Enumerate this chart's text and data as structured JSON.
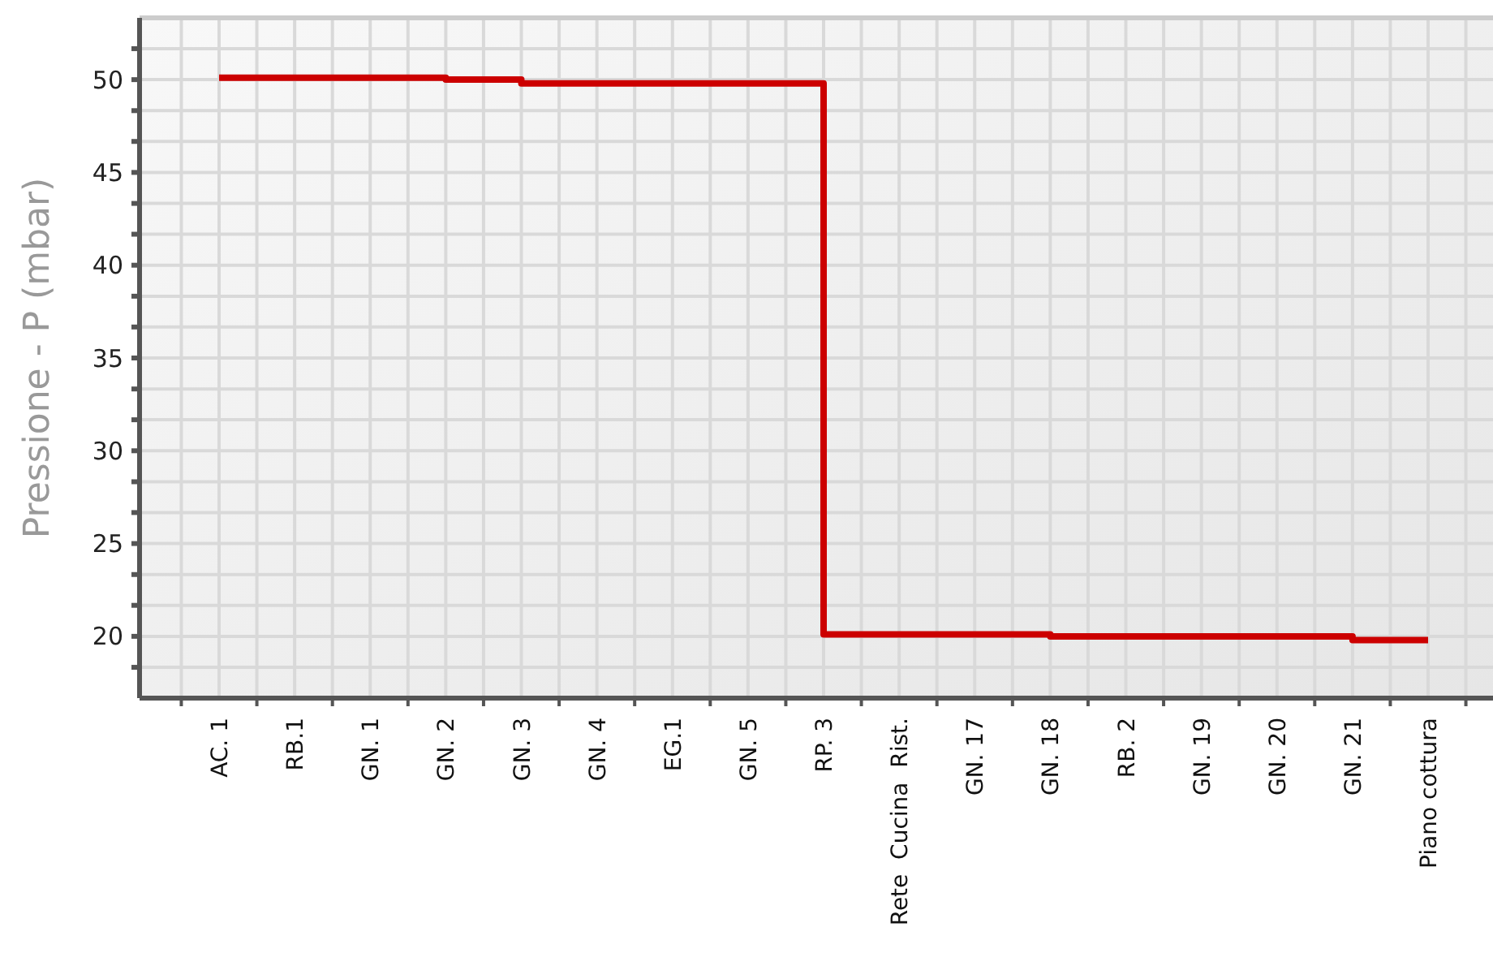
{
  "chart_data": {
    "type": "step",
    "ylabel": "Pressione - P (mbar)",
    "categories": [
      "AC. 1",
      "RB.1",
      "GN. 1",
      "GN. 2",
      "GN. 3",
      "GN. 4",
      "EG.1",
      "GN. 5",
      "RP. 3",
      "Rete  Cucina  Rist.",
      "GN. 17",
      "GN. 18",
      "RB. 2",
      "GN. 19",
      "GN. 20",
      "GN. 21",
      "Piano cottura"
    ],
    "series": [
      {
        "color": "#cc0000",
        "values": [
          50.1,
          50.1,
          50.1,
          50.0,
          49.8,
          49.8,
          49.8,
          49.8,
          20.1,
          20.1,
          20.1,
          20.0,
          20.0,
          20.0,
          20.0,
          19.8,
          19.8
        ]
      }
    ],
    "ylim": [
      16.67,
      53.33
    ],
    "yticks": [
      {
        "value": 18.33,
        "label": null
      },
      20,
      {
        "value": 21.67,
        "label": null
      },
      {
        "value": 23.33,
        "label": null
      },
      25,
      {
        "value": 26.67,
        "label": null
      },
      {
        "value": 28.33,
        "label": null
      },
      30,
      {
        "value": 31.67,
        "label": null
      },
      {
        "value": 33.33,
        "label": null
      },
      35,
      {
        "value": 36.67,
        "label": null
      },
      {
        "value": 38.33,
        "label": null
      },
      40,
      {
        "value": 41.67,
        "label": null
      },
      {
        "value": 43.33,
        "label": null
      },
      45,
      {
        "value": 46.67,
        "label": null
      },
      {
        "value": 48.33,
        "label": null
      },
      50,
      {
        "value": 51.67,
        "label": null
      }
    ],
    "grid": true,
    "marker": "none",
    "line_style": "solid"
  }
}
